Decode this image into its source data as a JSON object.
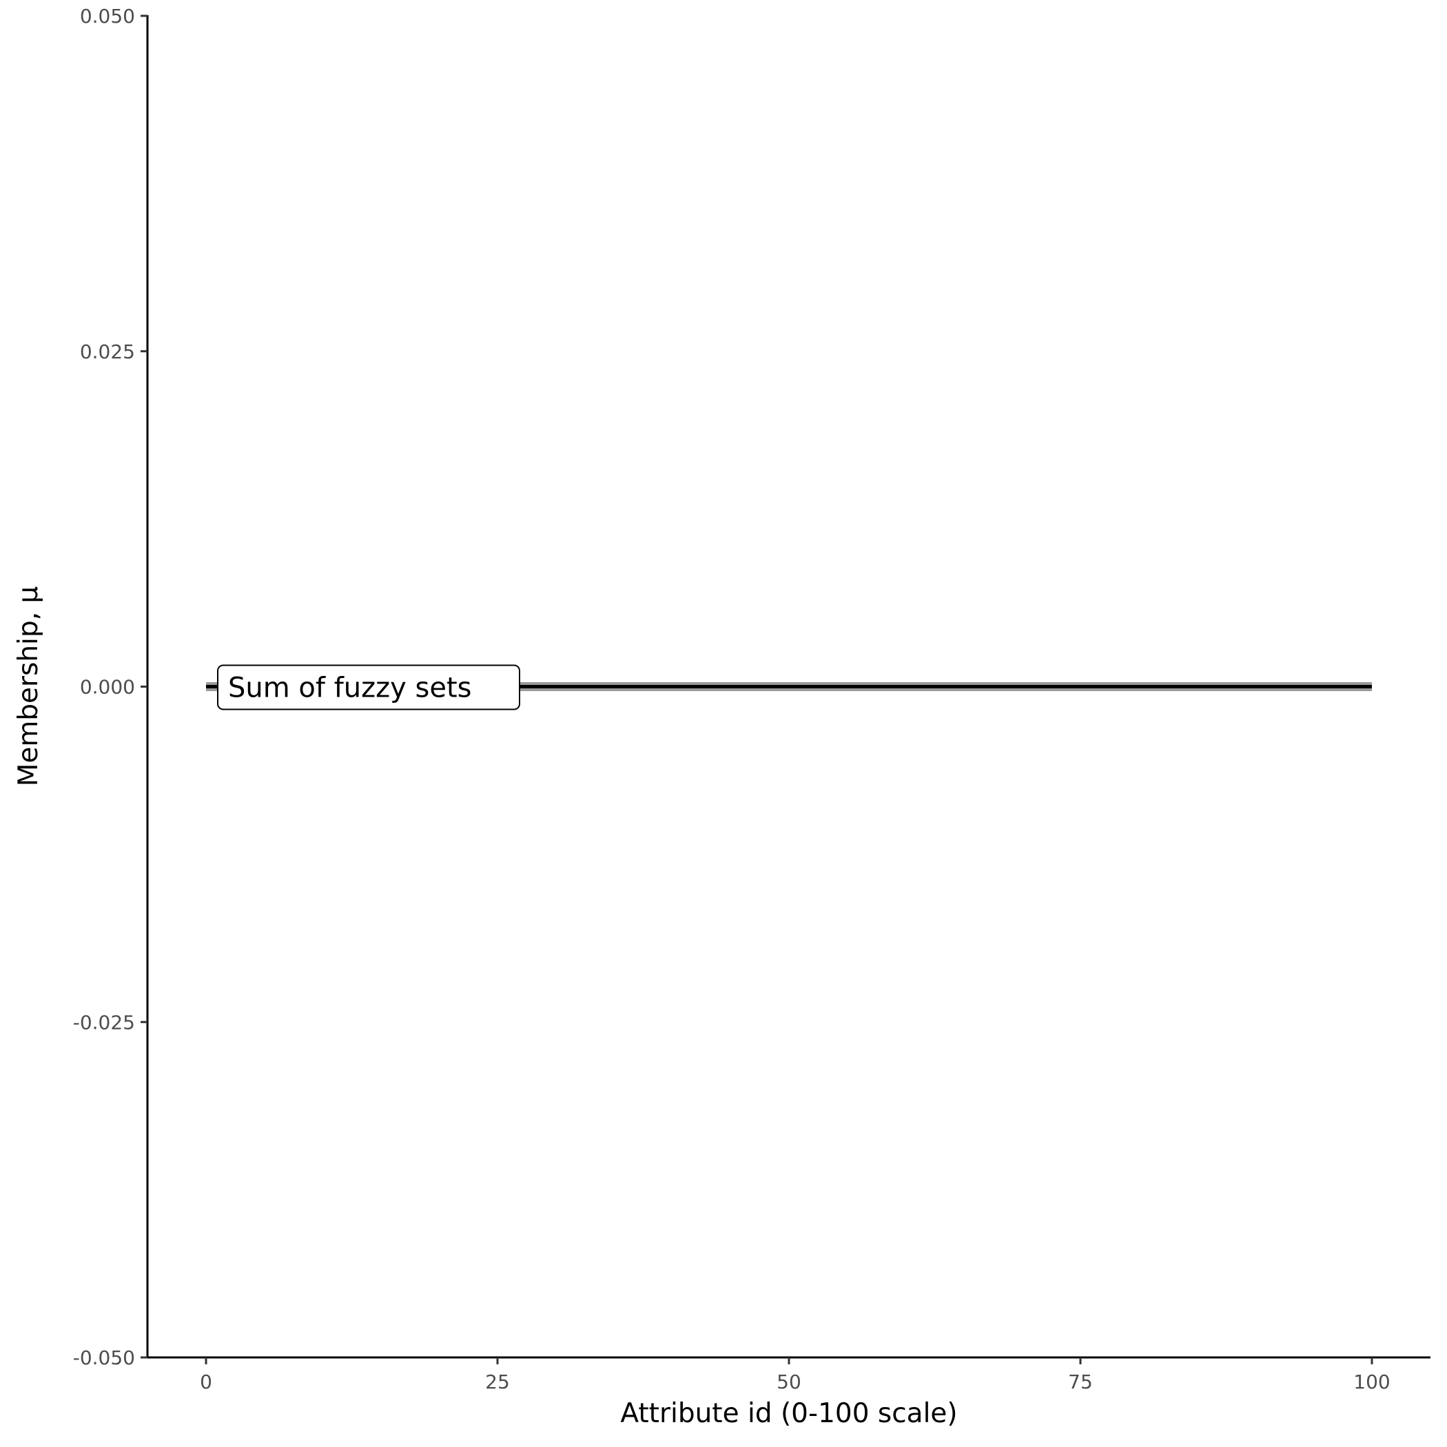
{
  "chart_data": {
    "type": "line",
    "title": "",
    "xlabel": "Attribute id (0-100 scale)",
    "ylabel": "Membership, μ",
    "xlim": [
      -5,
      105
    ],
    "ylim": [
      -0.05,
      0.05
    ],
    "x_ticks": [
      0,
      25,
      50,
      75,
      100
    ],
    "x_tick_labels": [
      "0",
      "25",
      "50",
      "75",
      "100"
    ],
    "y_ticks": [
      -0.05,
      -0.025,
      0,
      0.025,
      0.05
    ],
    "y_tick_labels": [
      "-0.050",
      "-0.025",
      "0.000",
      "0.025",
      "0.050"
    ],
    "grid": false,
    "series": [
      {
        "x": [
          0,
          100
        ],
        "y": [
          0,
          0
        ],
        "colors": {
          "outer": "#999999",
          "inner": "#000000"
        }
      }
    ],
    "annotations": [
      {
        "text": "Sum of fuzzy sets",
        "x": 0,
        "y": 0,
        "style": "label-box"
      }
    ]
  }
}
